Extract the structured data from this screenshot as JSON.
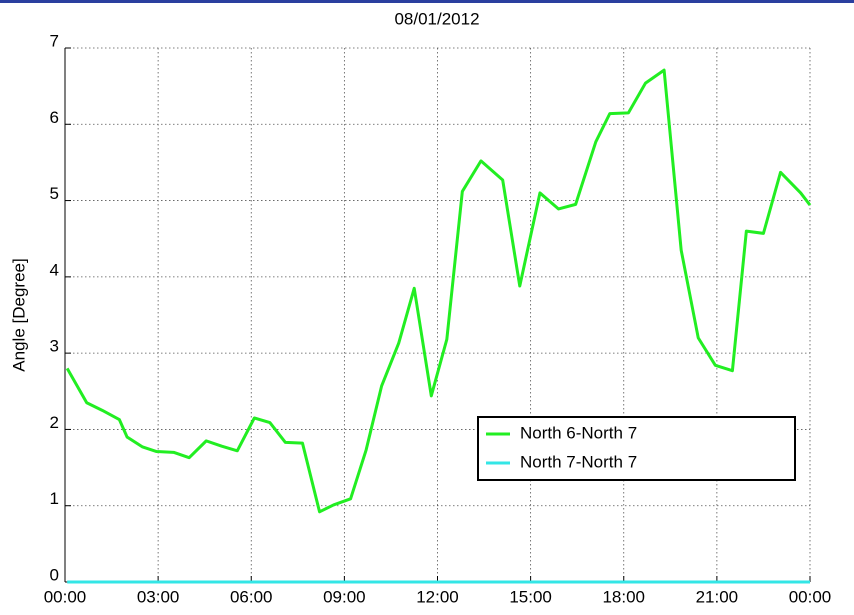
{
  "chart_data": {
    "type": "line",
    "title": "08/01/2012",
    "ylabel": "Angle [Degree]",
    "x": [
      0.07,
      0.7,
      1.2,
      1.75,
      2.0,
      2.5,
      2.95,
      3.5,
      4.0,
      4.55,
      5.05,
      5.55,
      6.1,
      6.6,
      7.1,
      7.65,
      8.2,
      8.65,
      9.2,
      9.7,
      10.2,
      10.75,
      11.25,
      11.8,
      12.3,
      12.8,
      13.4,
      14.1,
      14.65,
      15.3,
      15.9,
      16.45,
      17.1,
      17.55,
      18.15,
      18.7,
      19.3,
      19.85,
      20.4,
      20.95,
      21.5,
      21.95,
      22.5,
      23.05,
      23.7,
      24.0
    ],
    "series": [
      {
        "name": "North 6-North 7",
        "color": "#22ee22",
        "values": [
          2.8,
          2.35,
          2.25,
          2.13,
          1.9,
          1.77,
          1.71,
          1.7,
          1.63,
          1.85,
          1.78,
          1.72,
          2.15,
          2.09,
          1.83,
          1.82,
          0.92,
          1.01,
          1.09,
          1.73,
          2.57,
          3.13,
          3.85,
          2.44,
          3.18,
          5.12,
          5.52,
          5.27,
          3.88,
          5.1,
          4.89,
          4.95,
          5.77,
          6.14,
          6.15,
          6.54,
          6.71,
          4.35,
          3.2,
          2.84,
          2.77,
          4.6,
          4.57,
          5.37,
          5.1,
          4.94
        ]
      },
      {
        "name": "North 7-North 7",
        "color": "#33e6e6",
        "values": [
          0,
          0,
          0,
          0,
          0,
          0,
          0,
          0,
          0,
          0,
          0,
          0,
          0,
          0,
          0,
          0,
          0,
          0,
          0,
          0,
          0,
          0,
          0,
          0,
          0,
          0,
          0,
          0,
          0,
          0,
          0,
          0,
          0,
          0,
          0,
          0,
          0,
          0,
          0,
          0,
          0,
          0,
          0,
          0,
          0,
          0
        ]
      }
    ],
    "xlim": [
      0,
      24
    ],
    "xticks": [
      {
        "value": 0,
        "label": "00:00"
      },
      {
        "value": 3,
        "label": "03:00"
      },
      {
        "value": 6,
        "label": "06:00"
      },
      {
        "value": 9,
        "label": "09:00"
      },
      {
        "value": 12,
        "label": "12:00"
      },
      {
        "value": 15,
        "label": "15:00"
      },
      {
        "value": 18,
        "label": "18:00"
      },
      {
        "value": 21,
        "label": "21:00"
      },
      {
        "value": 24,
        "label": "00:00"
      }
    ],
    "ylim": [
      0,
      7
    ],
    "yticks": [
      0,
      1,
      2,
      3,
      4,
      5,
      6,
      7
    ],
    "grid": true,
    "legend": "lower right"
  }
}
